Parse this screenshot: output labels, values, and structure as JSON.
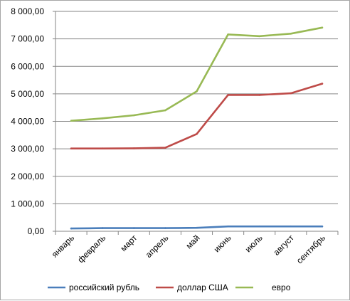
{
  "chart_data": {
    "type": "line",
    "title": "",
    "xlabel": "",
    "ylabel": "",
    "categories": [
      "январь",
      "февраль",
      "март",
      "апрель",
      "май",
      "июнь",
      "июль",
      "август",
      "сентябрь"
    ],
    "ylim": [
      0,
      8000
    ],
    "yticks": [
      0,
      1000,
      2000,
      3000,
      4000,
      5000,
      6000,
      7000,
      8000
    ],
    "ytick_labels": [
      "0,00",
      "1 000,00",
      "2 000,00",
      "3 000,00",
      "4 000,00",
      "5 000,00",
      "6 000,00",
      "7 000,00",
      "8 000,00"
    ],
    "grid": true,
    "legend_position": "bottom",
    "series": [
      {
        "name": "российский рубль",
        "color": "#4a7ebb",
        "values": [
          100,
          115,
          115,
          115,
          125,
          175,
          175,
          175,
          175
        ]
      },
      {
        "name": "доллар США",
        "color": "#be4b48",
        "values": [
          3010,
          3010,
          3020,
          3040,
          3540,
          4960,
          4960,
          5020,
          5370
        ]
      },
      {
        "name": "евро",
        "color": "#98b954",
        "values": [
          4020,
          4110,
          4220,
          4400,
          5090,
          7160,
          7100,
          7190,
          7410
        ]
      }
    ]
  }
}
